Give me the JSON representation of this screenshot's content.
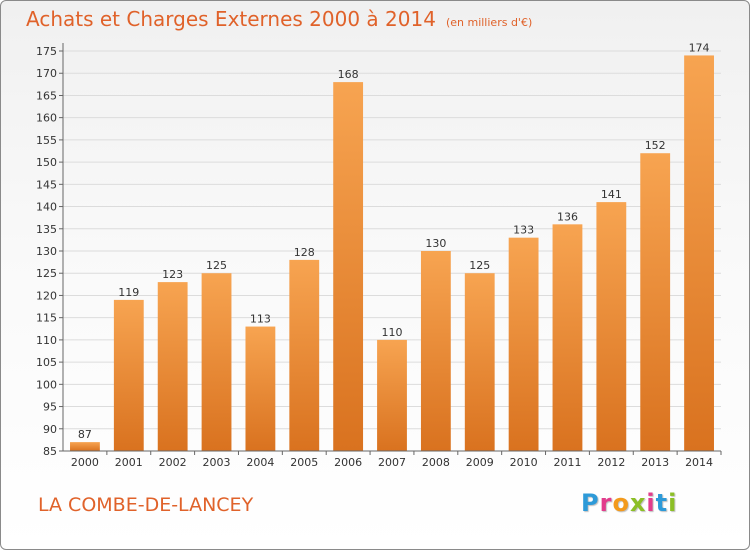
{
  "header": {
    "title": "Achats et Charges Externes 2000 à 2014",
    "subtitle": "(en milliers d'€)"
  },
  "footer": {
    "commune": "LA COMBE-DE-LANCEY",
    "logo_letters": [
      "P",
      "r",
      "o",
      "x",
      "i",
      "t",
      "i"
    ],
    "logo_colors": [
      "#2d9ad8",
      "#e23c8c",
      "#f39a1c",
      "#8cbf26",
      "#e23c8c",
      "#2d9ad8",
      "#8cbf26"
    ]
  },
  "colors": {
    "bar_top": "#f7a451",
    "bar_bottom": "#d9721f",
    "accent": "#e0622a"
  },
  "chart_data": {
    "type": "bar",
    "categories": [
      "2000",
      "2001",
      "2002",
      "2003",
      "2004",
      "2005",
      "2006",
      "2007",
      "2008",
      "2009",
      "2010",
      "2011",
      "2012",
      "2013",
      "2014"
    ],
    "values": [
      87,
      119,
      123,
      125,
      113,
      128,
      168,
      110,
      130,
      125,
      133,
      136,
      141,
      152,
      174
    ],
    "ylim": [
      85,
      175
    ],
    "yticks": [
      85,
      90,
      95,
      100,
      105,
      110,
      115,
      120,
      125,
      130,
      135,
      140,
      145,
      150,
      155,
      160,
      165,
      170,
      175
    ],
    "grid": true
  }
}
